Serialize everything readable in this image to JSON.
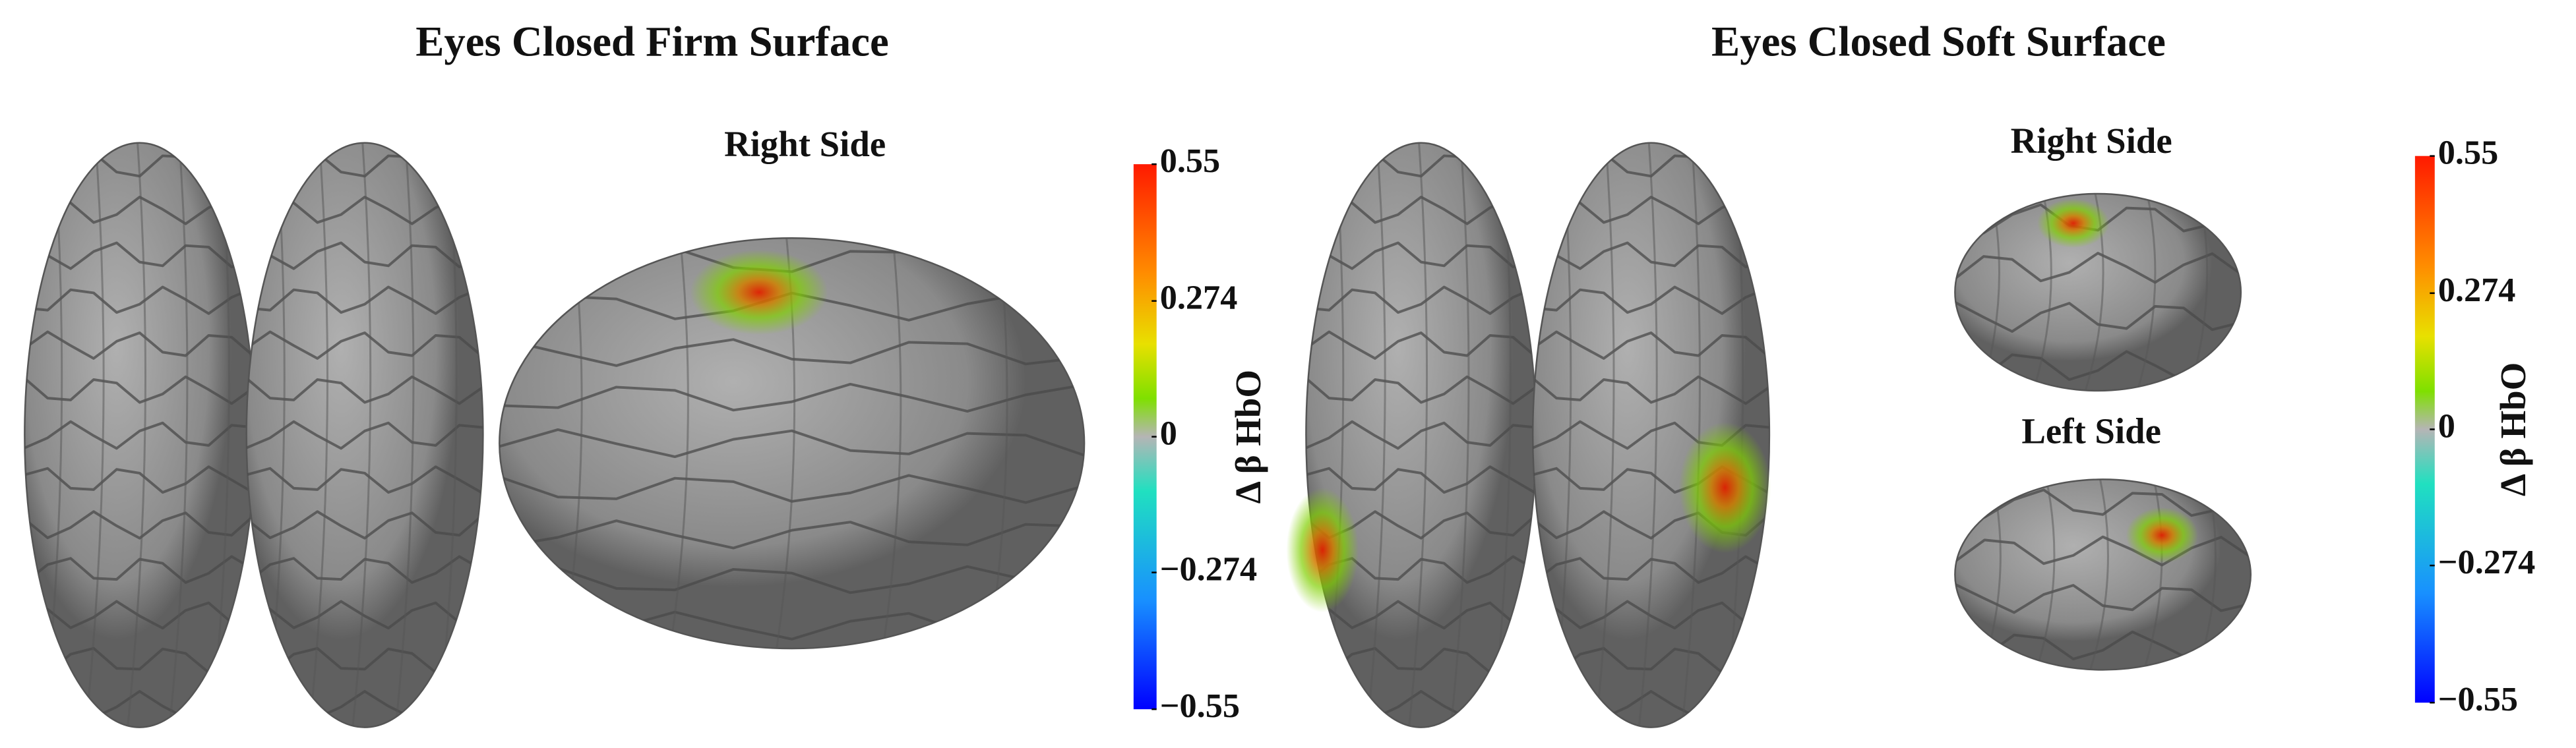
{
  "panels": [
    {
      "title": "Eyes Closed Firm Surface",
      "views": [
        "Right Side"
      ],
      "colorbar": {
        "label": "Δ β HbO",
        "lim": [
          -0.55,
          0.55
        ],
        "ticks": [
          0.55,
          0.274,
          0,
          {
            "value": -0.274,
            "label": "−0.274"
          },
          {
            "value": -0.55,
            "label": "−0.55"
          }
        ]
      }
    },
    {
      "title": "Eyes Closed Soft Surface",
      "views": [
        "Right Side",
        "Left Side"
      ],
      "colorbar": {
        "label": "Δ β HbO",
        "lim": [
          -0.55,
          0.55
        ],
        "ticks": [
          0.55,
          0.274,
          0,
          {
            "value": -0.274,
            "label": "−0.274"
          },
          {
            "value": -0.55,
            "label": "−0.55"
          }
        ]
      }
    }
  ]
}
